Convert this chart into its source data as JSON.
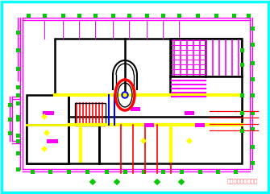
{
  "bg_color": "#ffffff",
  "cyan_color": "#00ffff",
  "magenta_color": "#ff00ff",
  "black_color": "#000000",
  "green_color": "#00cc00",
  "yellow_color": "#ffff00",
  "red_color": "#ff0000",
  "blue_color": "#0000ff",
  "annotation_text": "图中尺寸以现场为准",
  "annotation_color": "#ff6666",
  "annotation_fontsize": 5.0
}
